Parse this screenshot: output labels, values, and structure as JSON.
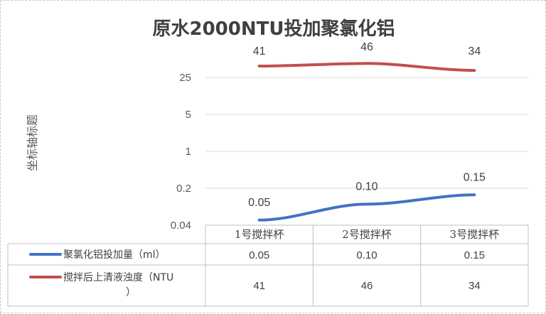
{
  "chart_data": {
    "type": "line",
    "title": "原水2000NTU投加聚氯化铝",
    "ylabel": "坐标轴标题",
    "xlabel": "",
    "yscale": "log",
    "ylim": [
      0.04,
      125
    ],
    "yticks": [
      "0.04",
      "0.2",
      "1",
      "5",
      "25"
    ],
    "ytick_values": [
      0.04,
      0.2,
      1,
      5,
      25
    ],
    "categories": [
      "1号搅拌杯",
      "2号搅拌杯",
      "3号搅拌杯"
    ],
    "series": [
      {
        "name": "聚氯化铝投加量（ml）",
        "values": [
          0.05,
          0.1,
          0.15
        ],
        "labels": [
          "0.05",
          "0.10",
          "0.15"
        ],
        "cells": [
          "0.05",
          "0.10",
          "0.15"
        ],
        "color": "#4472c4"
      },
      {
        "name": "搅拌后上清液浊度（NTU",
        "name_cont": "）",
        "values": [
          41,
          46,
          34
        ],
        "labels": [
          "41",
          "46",
          "34"
        ],
        "cells": [
          "41",
          "46",
          "34"
        ],
        "color": "#c0504d"
      }
    ],
    "grid": true,
    "legend": "data-table-below"
  }
}
